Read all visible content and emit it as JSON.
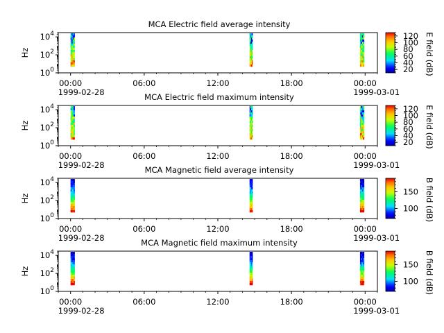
{
  "chart_data": [
    {
      "type": "heatmap",
      "title": "MCA  Electric field average intensity",
      "ylabel": "Hz",
      "yscale": "log",
      "ylim": [
        1,
        30000
      ],
      "y_ticks": [
        {
          "base": "10",
          "exp": "0"
        },
        {
          "base": "10",
          "exp": "2"
        },
        {
          "base": "10",
          "exp": "4"
        }
      ],
      "x_ticks": [
        "00:00",
        "06:00",
        "12:00",
        "18:00",
        "00:00"
      ],
      "x_dates": [
        "1999-02-28",
        "1999-03-01"
      ],
      "x_range": [
        "1999-02-27T23:00",
        "1999-03-01T01:00"
      ],
      "colorbar": {
        "label": "E field (dB)",
        "range": [
          10,
          130
        ],
        "ticks": [
          "20",
          "40",
          "60",
          "80",
          "100",
          "120"
        ],
        "colormap": "rainbow"
      },
      "data_blocks": [
        {
          "start": "1999-02-28T00:00",
          "end": "1999-02-28T00:20",
          "freq_range": [
            5,
            25000
          ]
        },
        {
          "start": "1999-02-28T14:35",
          "end": "1999-02-28T14:50",
          "freq_range": [
            5,
            25000
          ]
        },
        {
          "start": "1999-02-28T23:35",
          "end": "1999-02-28T23:55",
          "freq_range": [
            5,
            25000
          ]
        }
      ]
    },
    {
      "type": "heatmap",
      "title": "MCA  Electric field maximum intensity",
      "ylabel": "Hz",
      "yscale": "log",
      "ylim": [
        1,
        30000
      ],
      "y_ticks": [
        {
          "base": "10",
          "exp": "0"
        },
        {
          "base": "10",
          "exp": "2"
        },
        {
          "base": "10",
          "exp": "4"
        }
      ],
      "x_ticks": [
        "00:00",
        "06:00",
        "12:00",
        "18:00",
        "00:00"
      ],
      "x_dates": [
        "1999-02-28",
        "1999-03-01"
      ],
      "x_range": [
        "1999-02-27T23:00",
        "1999-03-01T01:00"
      ],
      "colorbar": {
        "label": "E field (dB)",
        "range": [
          10,
          130
        ],
        "ticks": [
          "20",
          "40",
          "60",
          "80",
          "100",
          "120"
        ],
        "colormap": "rainbow"
      },
      "data_blocks": [
        {
          "start": "1999-02-28T00:00",
          "end": "1999-02-28T00:20",
          "freq_range": [
            5,
            25000
          ]
        },
        {
          "start": "1999-02-28T14:35",
          "end": "1999-02-28T14:50",
          "freq_range": [
            5,
            25000
          ]
        },
        {
          "start": "1999-02-28T23:35",
          "end": "1999-02-28T23:55",
          "freq_range": [
            5,
            25000
          ]
        }
      ]
    },
    {
      "type": "heatmap",
      "title": "MCA  Magnetic field average intensity",
      "ylabel": "Hz",
      "yscale": "log",
      "ylim": [
        1,
        30000
      ],
      "y_ticks": [
        {
          "base": "10",
          "exp": "0"
        },
        {
          "base": "10",
          "exp": "2"
        },
        {
          "base": "10",
          "exp": "4"
        }
      ],
      "x_ticks": [
        "00:00",
        "06:00",
        "12:00",
        "18:00",
        "00:00"
      ],
      "x_dates": [
        "1999-02-28",
        "1999-03-01"
      ],
      "x_range": [
        "1999-02-27T23:00",
        "1999-03-01T01:00"
      ],
      "colorbar": {
        "label": "B field (dB)",
        "range": [
          70,
          190
        ],
        "ticks": [
          "100",
          "150"
        ],
        "colormap": "rainbow"
      },
      "data_blocks": [
        {
          "start": "1999-02-28T00:00",
          "end": "1999-02-28T00:20",
          "freq_range": [
            5,
            25000
          ]
        },
        {
          "start": "1999-02-28T14:35",
          "end": "1999-02-28T14:50",
          "freq_range": [
            5,
            25000
          ]
        },
        {
          "start": "1999-02-28T23:35",
          "end": "1999-02-28T23:55",
          "freq_range": [
            5,
            25000
          ]
        }
      ]
    },
    {
      "type": "heatmap",
      "title": "MCA  Magnetic field maximum intensity",
      "ylabel": "Hz",
      "yscale": "log",
      "ylim": [
        1,
        30000
      ],
      "y_ticks": [
        {
          "base": "10",
          "exp": "0"
        },
        {
          "base": "10",
          "exp": "2"
        },
        {
          "base": "10",
          "exp": "4"
        }
      ],
      "x_ticks": [
        "00:00",
        "06:00",
        "12:00",
        "18:00",
        "00:00"
      ],
      "x_dates": [
        "1999-02-28",
        "1999-03-01"
      ],
      "x_range": [
        "1999-02-27T23:00",
        "1999-03-01T01:00"
      ],
      "colorbar": {
        "label": "B field (dB)",
        "range": [
          70,
          190
        ],
        "ticks": [
          "100",
          "150"
        ],
        "colormap": "rainbow"
      },
      "data_blocks": [
        {
          "start": "1999-02-28T00:00",
          "end": "1999-02-28T00:20",
          "freq_range": [
            5,
            25000
          ]
        },
        {
          "start": "1999-02-28T14:35",
          "end": "1999-02-28T14:50",
          "freq_range": [
            5,
            25000
          ]
        },
        {
          "start": "1999-02-28T23:35",
          "end": "1999-02-28T23:55",
          "freq_range": [
            5,
            25000
          ]
        }
      ]
    }
  ]
}
